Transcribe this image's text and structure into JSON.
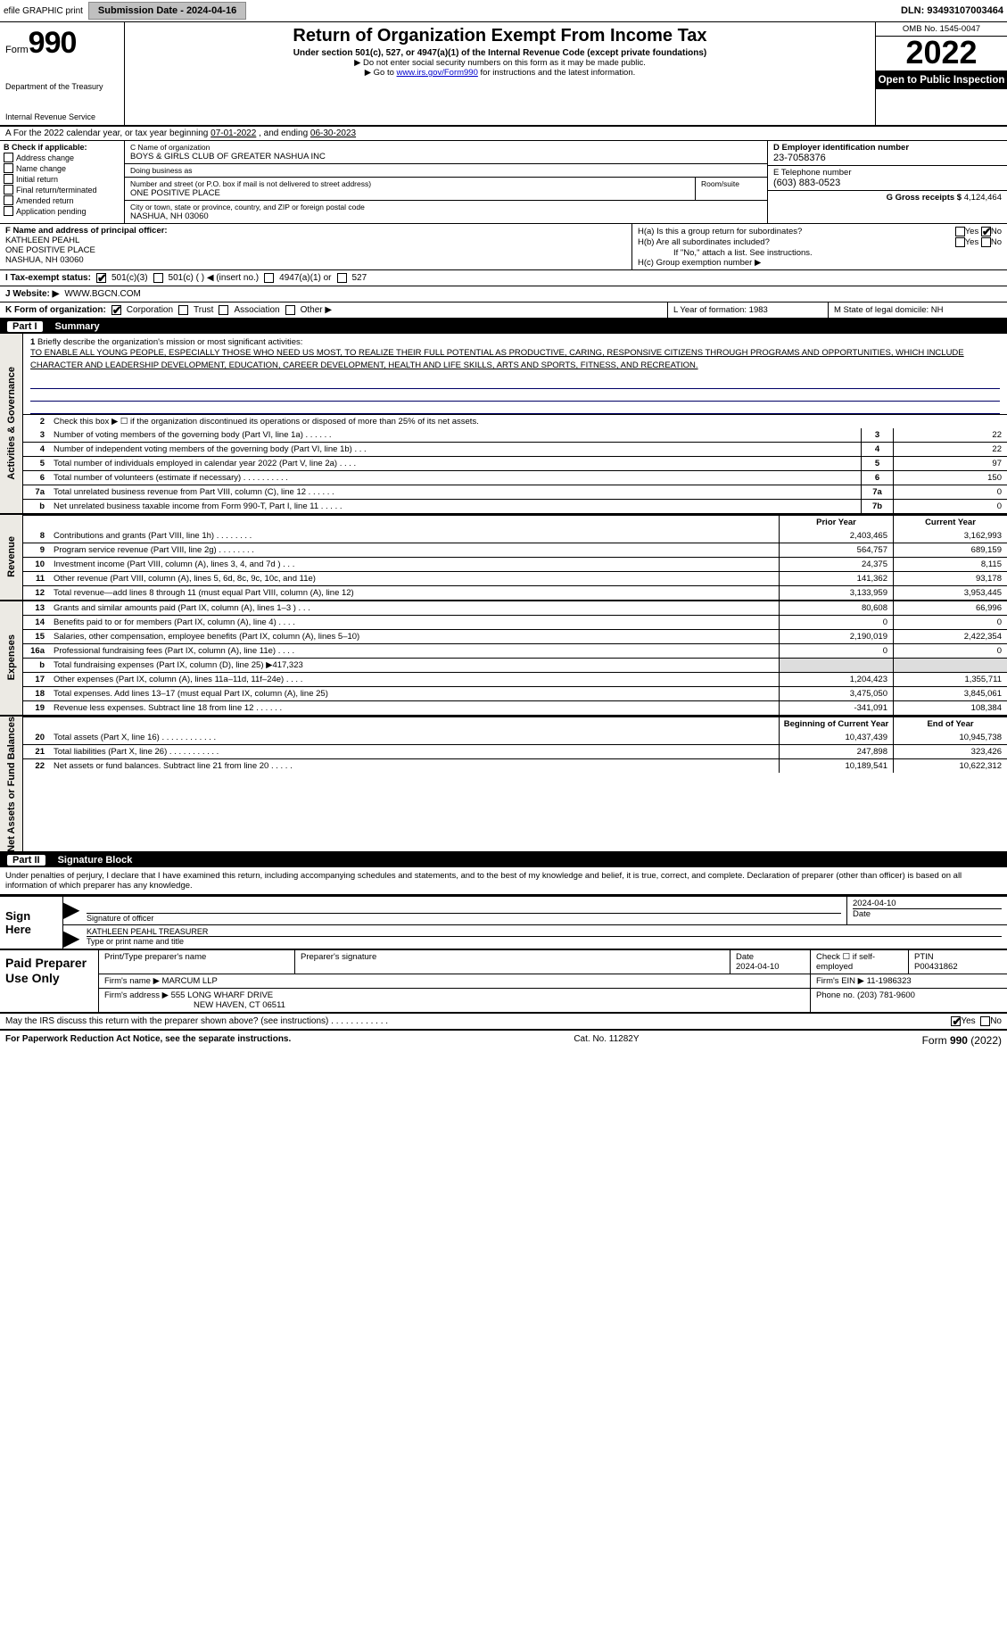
{
  "topbar": {
    "efile_label": "efile GRAPHIC print",
    "submission_label": "Submission Date - 2024-04-16",
    "dln_label": "DLN: 93493107003464"
  },
  "header": {
    "form_word": "Form",
    "form_num": "990",
    "dept": "Department of the Treasury",
    "irs": "Internal Revenue Service",
    "title": "Return of Organization Exempt From Income Tax",
    "sub1": "Under section 501(c), 527, or 4947(a)(1) of the Internal Revenue Code (except private foundations)",
    "sub2": "▶ Do not enter social security numbers on this form as it may be made public.",
    "sub3_pre": "▶ Go to ",
    "sub3_link": "www.irs.gov/Form990",
    "sub3_post": " for instructions and the latest information.",
    "omb": "OMB No. 1545-0047",
    "year": "2022",
    "open": "Open to Public Inspection"
  },
  "row_a": {
    "text_pre": "A For the 2022 calendar year, or tax year beginning ",
    "begin": "07-01-2022",
    "mid": " , and ending ",
    "end": "06-30-2023"
  },
  "col_b": {
    "label": "B Check if applicable:",
    "items": [
      "Address change",
      "Name change",
      "Initial return",
      "Final return/terminated",
      "Amended return",
      "Application pending"
    ]
  },
  "col_c": {
    "name_label": "C Name of organization",
    "name": "BOYS & GIRLS CLUB OF GREATER NASHUA INC",
    "dba_label": "Doing business as",
    "dba": "",
    "street_label": "Number and street (or P.O. box if mail is not delivered to street address)",
    "street": "ONE POSITIVE PLACE",
    "room_label": "Room/suite",
    "city_label": "City or town, state or province, country, and ZIP or foreign postal code",
    "city": "NASHUA, NH  03060"
  },
  "col_d": {
    "label": "D Employer identification number",
    "value": "23-7058376"
  },
  "col_e": {
    "label": "E Telephone number",
    "value": "(603) 883-0523"
  },
  "col_g": {
    "label": "G Gross receipts $",
    "value": "4,124,464"
  },
  "col_f": {
    "label": "F Name and address of principal officer:",
    "name": "KATHLEEN PEAHL",
    "addr1": "ONE POSITIVE PLACE",
    "addr2": "NASHUA, NH  03060"
  },
  "col_h": {
    "ha": "H(a)  Is this a group return for subordinates?",
    "ha_ans": "No",
    "hb": "H(b)  Are all subordinates included?",
    "hb_note": "If \"No,\" attach a list. See instructions.",
    "hc": "H(c)  Group exemption number ▶"
  },
  "row_i": {
    "label": "I  Tax-exempt status:",
    "o1": "501(c)(3)",
    "o2": "501(c) (    ) ◀ (insert no.)",
    "o3": "4947(a)(1) or",
    "o4": "527"
  },
  "row_j": {
    "label": "J  Website: ▶",
    "value": "WWW.BGCN.COM"
  },
  "row_k": {
    "label": "K Form of organization:",
    "o1": "Corporation",
    "o2": "Trust",
    "o3": "Association",
    "o4": "Other ▶"
  },
  "row_l": {
    "l": "L Year of formation: 1983",
    "m": "M State of legal domicile: NH"
  },
  "part1": {
    "num": "Part I",
    "title": "Summary"
  },
  "mission": {
    "num": "1",
    "label": "Briefly describe the organization's mission or most significant activities:",
    "text": "TO ENABLE ALL YOUNG PEOPLE, ESPECIALLY THOSE WHO NEED US MOST, TO REALIZE THEIR FULL POTENTIAL AS PRODUCTIVE, CARING, RESPONSIVE CITIZENS THROUGH PROGRAMS AND OPPORTUNITIES, WHICH INCLUDE CHARACTER AND LEADERSHIP DEVELOPMENT, EDUCATION, CAREER DEVELOPMENT, HEALTH AND LIFE SKILLS, ARTS AND SPORTS, FITNESS, AND RECREATION."
  },
  "gov": {
    "side": "Activities & Governance",
    "line2": "Check this box ▶ ☐  if the organization discontinued its operations or disposed of more than 25% of its net assets.",
    "rows": [
      {
        "n": "3",
        "d": "Number of voting members of the governing body (Part VI, line 1a)   .    .    .    .    .    .",
        "b": "3",
        "v": "22"
      },
      {
        "n": "4",
        "d": "Number of independent voting members of the governing body (Part VI, line 1b)   .    .    .",
        "b": "4",
        "v": "22"
      },
      {
        "n": "5",
        "d": "Total number of individuals employed in calendar year 2022 (Part V, line 2a)   .    .    .    .",
        "b": "5",
        "v": "97"
      },
      {
        "n": "6",
        "d": "Total number of volunteers (estimate if necessary)    .    .    .    .    .    .    .    .    .    .",
        "b": "6",
        "v": "150"
      },
      {
        "n": "7a",
        "d": "Total unrelated business revenue from Part VIII, column (C), line 12   .    .    .    .    .    .",
        "b": "7a",
        "v": "0"
      },
      {
        "n": "b",
        "d": "Net unrelated business taxable income from Form 990-T, Part I, line 11   .    .    .    .    .",
        "b": "7b",
        "v": "0"
      }
    ]
  },
  "rev": {
    "side": "Revenue",
    "hdr1": "Prior Year",
    "hdr2": "Current Year",
    "rows": [
      {
        "n": "8",
        "d": "Contributions and grants (Part VIII, line 1h)   .    .    .    .    .    .    .    .",
        "v1": "2,403,465",
        "v2": "3,162,993"
      },
      {
        "n": "9",
        "d": "Program service revenue (Part VIII, line 2g)   .    .    .    .    .    .    .    .",
        "v1": "564,757",
        "v2": "689,159"
      },
      {
        "n": "10",
        "d": "Investment income (Part VIII, column (A), lines 3, 4, and 7d )   .    .    .",
        "v1": "24,375",
        "v2": "8,115"
      },
      {
        "n": "11",
        "d": "Other revenue (Part VIII, column (A), lines 5, 6d, 8c, 9c, 10c, and 11e)",
        "v1": "141,362",
        "v2": "93,178"
      },
      {
        "n": "12",
        "d": "Total revenue—add lines 8 through 11 (must equal Part VIII, column (A), line 12)",
        "v1": "3,133,959",
        "v2": "3,953,445"
      }
    ]
  },
  "exp": {
    "side": "Expenses",
    "rows": [
      {
        "n": "13",
        "d": "Grants and similar amounts paid (Part IX, column (A), lines 1–3 )   .    .    .",
        "v1": "80,608",
        "v2": "66,996"
      },
      {
        "n": "14",
        "d": "Benefits paid to or for members (Part IX, column (A), line 4)   .    .    .    .",
        "v1": "0",
        "v2": "0"
      },
      {
        "n": "15",
        "d": "Salaries, other compensation, employee benefits (Part IX, column (A), lines 5–10)",
        "v1": "2,190,019",
        "v2": "2,422,354"
      },
      {
        "n": "16a",
        "d": "Professional fundraising fees (Part IX, column (A), line 11e)   .    .    .    .",
        "v1": "0",
        "v2": "0"
      },
      {
        "n": "b",
        "d": "Total fundraising expenses (Part IX, column (D), line 25) ▶417,323",
        "v1": "",
        "v2": ""
      },
      {
        "n": "17",
        "d": "Other expenses (Part IX, column (A), lines 11a–11d, 11f–24e)   .    .    .    .",
        "v1": "1,204,423",
        "v2": "1,355,711"
      },
      {
        "n": "18",
        "d": "Total expenses. Add lines 13–17 (must equal Part IX, column (A), line 25)",
        "v1": "3,475,050",
        "v2": "3,845,061"
      },
      {
        "n": "19",
        "d": "Revenue less expenses. Subtract line 18 from line 12   .    .    .    .    .    .",
        "v1": "-341,091",
        "v2": "108,384"
      }
    ]
  },
  "net": {
    "side": "Net Assets or Fund Balances",
    "hdr1": "Beginning of Current Year",
    "hdr2": "End of Year",
    "rows": [
      {
        "n": "20",
        "d": "Total assets (Part X, line 16)   .    .    .    .    .    .    .    .    .    .    .    .",
        "v1": "10,437,439",
        "v2": "10,945,738"
      },
      {
        "n": "21",
        "d": "Total liabilities (Part X, line 26)   .    .    .    .    .    .    .    .    .    .    .",
        "v1": "247,898",
        "v2": "323,426"
      },
      {
        "n": "22",
        "d": "Net assets or fund balances. Subtract line 21 from line 20   .    .    .    .    .",
        "v1": "10,189,541",
        "v2": "10,622,312"
      }
    ]
  },
  "part2": {
    "num": "Part II",
    "title": "Signature Block"
  },
  "penalty": "Under penalties of perjury, I declare that I have examined this return, including accompanying schedules and statements, and to the best of my knowledge and belief, it is true, correct, and complete. Declaration of preparer (other than officer) is based on all information of which preparer has any knowledge.",
  "sign": {
    "side": "Sign Here",
    "sig_label": "Signature of officer",
    "date": "2024-04-10",
    "date_label": "Date",
    "name": "KATHLEEN PEAHL  TREASURER",
    "name_label": "Type or print name and title"
  },
  "paid": {
    "side": "Paid Preparer Use Only",
    "r1": {
      "c1": "Print/Type preparer's name",
      "c2": "Preparer's signature",
      "c3": "Date",
      "c3v": "2024-04-10",
      "c4": "Check ☐ if self-employed",
      "c5": "PTIN",
      "c5v": "P00431862"
    },
    "r2": {
      "c1": "Firm's name    ▶",
      "c1v": "MARCUM LLP",
      "c2": "Firm's EIN ▶",
      "c2v": "11-1986323"
    },
    "r3": {
      "c1": "Firm's address ▶",
      "c1v": "555 LONG WHARF DRIVE",
      "c1v2": "NEW HAVEN, CT  06511",
      "c2": "Phone no.",
      "c2v": "(203) 781-9600"
    }
  },
  "discuss": {
    "q": "May the IRS discuss this return with the preparer shown above? (see instructions)   .    .    .    .    .    .    .    .    .    .    .    .",
    "yes": "Yes",
    "no": "No"
  },
  "footer": {
    "left": "For Paperwork Reduction Act Notice, see the separate instructions.",
    "mid": "Cat. No. 11282Y",
    "right_pre": "Form ",
    "right_num": "990",
    "right_post": " (2022)"
  }
}
